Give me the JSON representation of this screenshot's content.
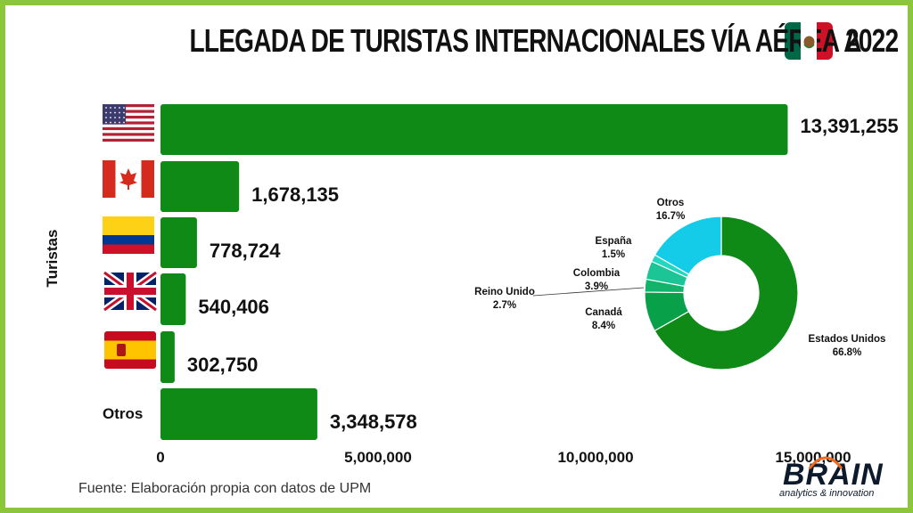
{
  "title_left": "LLEGADA DE TURISTAS INTERNACIONALES VÍA AÉREA A",
  "title_year": "2022",
  "source": "Fuente: Elaboración propia con datos de UPM",
  "logo": {
    "word": "BRAIN",
    "tagline": "analytics & innovation"
  },
  "colors": {
    "bar": "#0f8a17",
    "border": "#8cc63f"
  },
  "chart_data": [
    {
      "type": "bar",
      "orientation": "horizontal",
      "ylabel": "Turistas",
      "categories": [
        "flag-usa",
        "flag-canada",
        "flag-colombia",
        "flag-uk",
        "flag-spain",
        "Otros"
      ],
      "values": [
        13391255,
        1678135,
        778724,
        540406,
        302750,
        3348578
      ],
      "value_labels": [
        "13,391,255",
        "1,678,135",
        "778,724",
        "540,406",
        "302,750",
        "3,348,578"
      ],
      "xlim": [
        0,
        15000000
      ],
      "xticks": [
        0,
        5000000,
        10000000,
        15000000
      ],
      "xtick_labels": [
        "0",
        "5,000,000",
        "10,000,000",
        "15,000,000"
      ],
      "grid": false,
      "legend": "none"
    },
    {
      "type": "pie",
      "donut": true,
      "slices": [
        {
          "name": "Estados Unidos",
          "value": 66.8,
          "label": "66.8%",
          "color": "#0f8a17"
        },
        {
          "name": "Canadá",
          "value": 8.4,
          "label": "8.4%",
          "color": "#08a14a"
        },
        {
          "name": "Reino Unido",
          "value": 2.7,
          "label": "2.7%",
          "color": "#12b36a"
        },
        {
          "name": "Colombia",
          "value": 3.9,
          "label": "3.9%",
          "color": "#1cc595"
        },
        {
          "name": "España",
          "value": 1.5,
          "label": "1.5%",
          "color": "#23d6c0"
        },
        {
          "name": "Otros",
          "value": 16.7,
          "label": "16.7%",
          "color": "#14cbe8"
        }
      ]
    }
  ]
}
